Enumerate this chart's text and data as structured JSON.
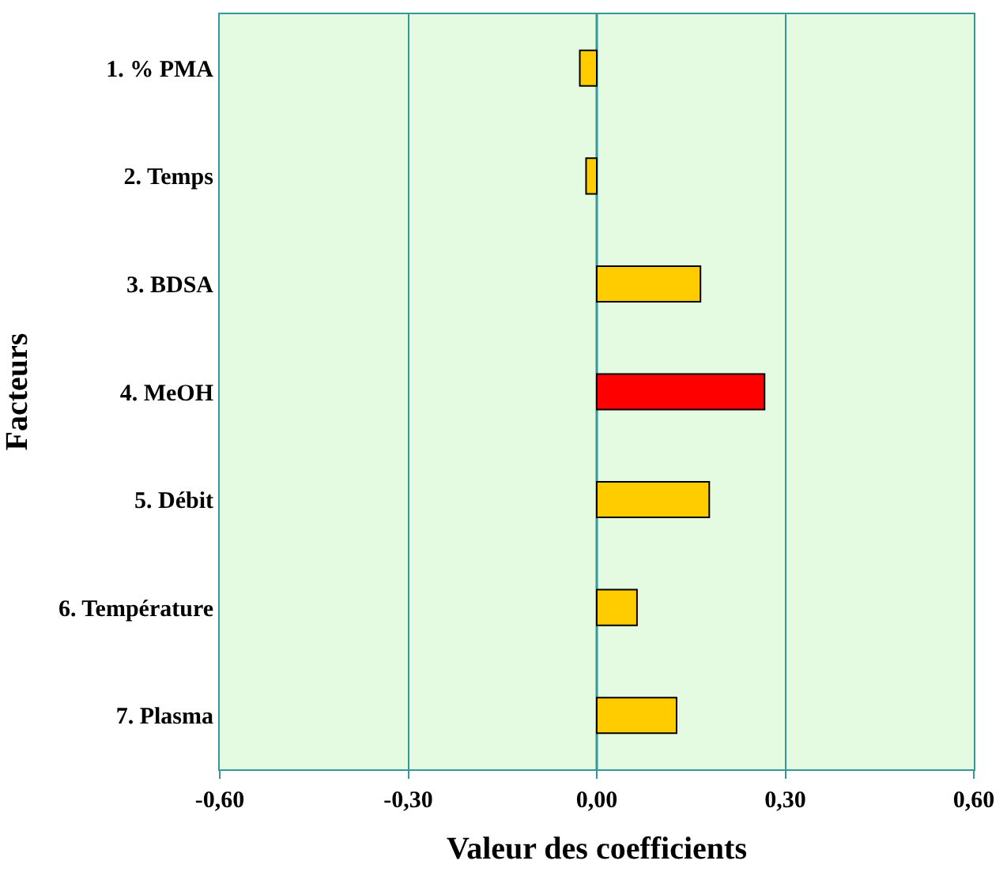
{
  "chart_data": {
    "type": "bar",
    "orientation": "horizontal",
    "xlabel": "Valeur des coefficients",
    "ylabel": "Facteurs",
    "categories": [
      "1. % PMA",
      "2. Temps",
      "3. BDSA",
      "4. MeOH",
      "5. Débit",
      "6. Température",
      "7. Plasma"
    ],
    "values": [
      -0.027,
      -0.017,
      0.165,
      0.267,
      0.179,
      0.064,
      0.127
    ],
    "colors": [
      "#ffcc00",
      "#ffcc00",
      "#ffcc00",
      "#ff0000",
      "#ffcc00",
      "#ffcc00",
      "#ffcc00"
    ],
    "xlim": [
      -0.6,
      0.6
    ],
    "xticks": [
      {
        "value": -0.6,
        "label": "-0,60"
      },
      {
        "value": -0.3,
        "label": "-0,30"
      },
      {
        "value": 0,
        "label": "0,00"
      },
      {
        "value": 0.3,
        "label": "0,30"
      },
      {
        "value": 0.6,
        "label": "0,60"
      }
    ],
    "grid": "x",
    "ref_lines": [
      {
        "axis": "x",
        "value": 0,
        "color": "#339999"
      }
    ]
  }
}
